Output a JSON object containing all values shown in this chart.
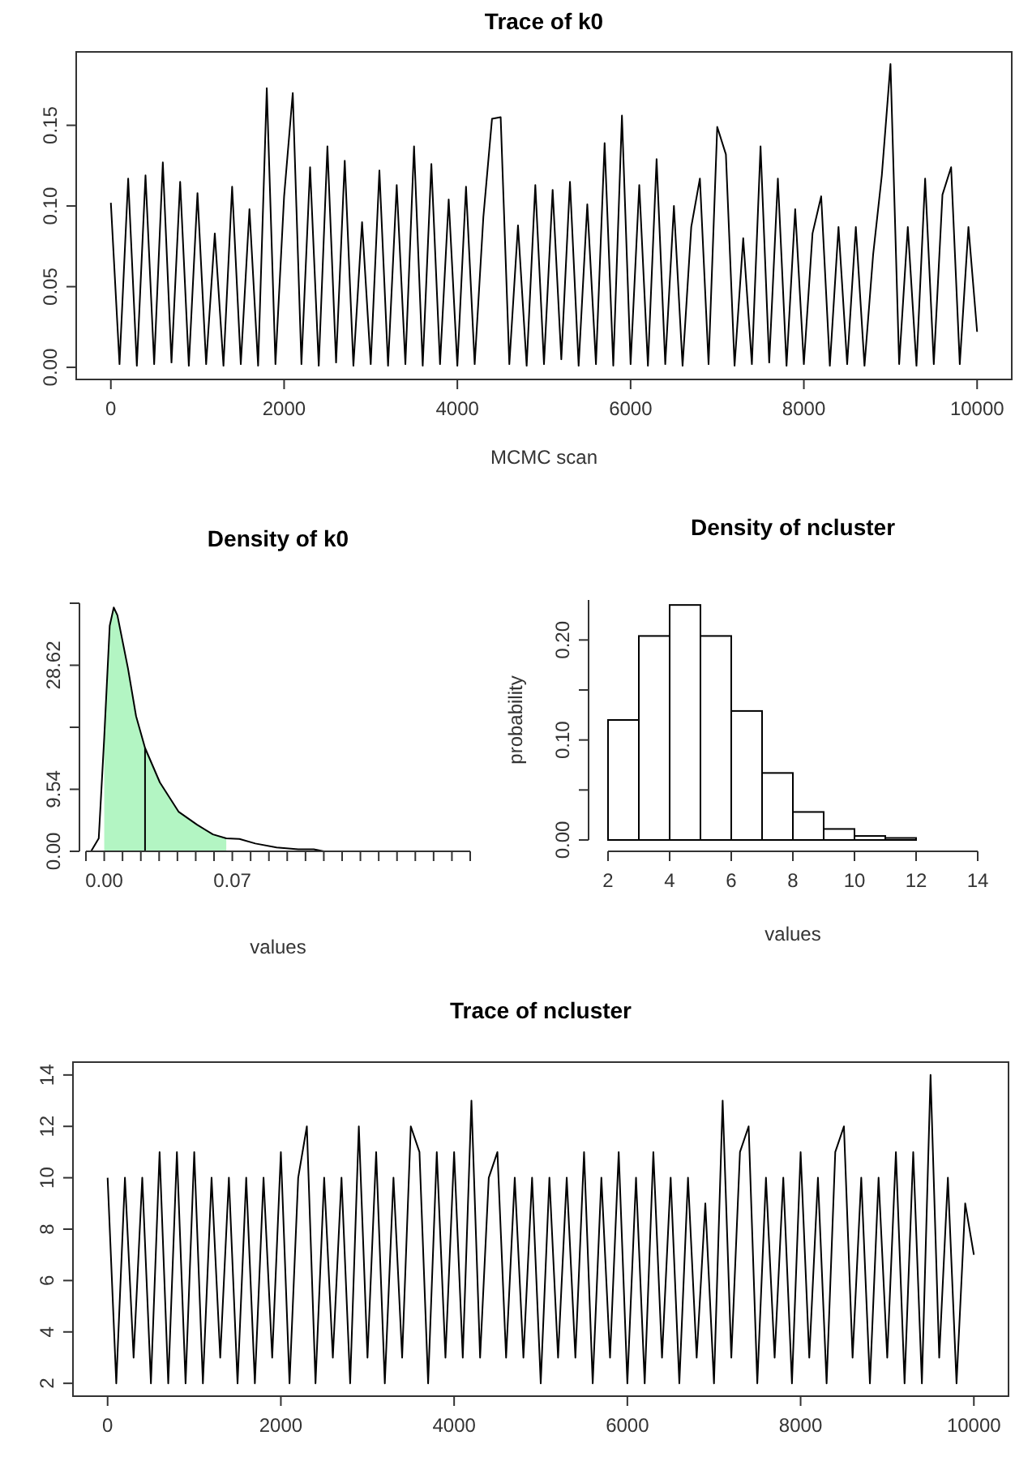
{
  "chart_data": [
    {
      "type": "line",
      "title": "Trace of k0",
      "xlabel": "MCMC scan",
      "xlim": [
        -400,
        10400
      ],
      "ylim": [
        -0.0075,
        0.1955
      ],
      "xticks": [
        0,
        2000,
        4000,
        6000,
        8000,
        10000
      ],
      "yticks": [
        {
          "value": 0,
          "label": "0.00"
        },
        {
          "value": 0.05,
          "label": "0.05"
        },
        {
          "value": 0.1,
          "label": "0.10"
        },
        {
          "value": 0.15,
          "label": "0.15"
        }
      ],
      "series": [
        {
          "color": "#000000",
          "x": [
            0,
            100,
            200,
            300,
            400,
            500,
            600,
            700,
            800,
            900,
            1000,
            1100,
            1200,
            1300,
            1400,
            1500,
            1600,
            1700,
            1800,
            1900,
            2000,
            2100,
            2200,
            2300,
            2400,
            2500,
            2600,
            2700,
            2800,
            2900,
            3000,
            3100,
            3200,
            3300,
            3400,
            3500,
            3600,
            3700,
            3800,
            3900,
            4000,
            4100,
            4200,
            4300,
            4400,
            4500,
            4600,
            4700,
            4800,
            4900,
            5000,
            5100,
            5200,
            5300,
            5400,
            5500,
            5600,
            5700,
            5800,
            5900,
            6000,
            6100,
            6200,
            6300,
            6400,
            6500,
            6600,
            6700,
            6800,
            6900,
            7000,
            7100,
            7200,
            7300,
            7400,
            7500,
            7600,
            7700,
            7800,
            7900,
            8000,
            8100,
            8200,
            8300,
            8400,
            8500,
            8600,
            8700,
            8800,
            8900,
            9000,
            9100,
            9200,
            9300,
            9400,
            9500,
            9600,
            9700,
            9800,
            9900,
            10000
          ],
          "values": [
            0.102,
            0.002,
            0.117,
            0.001,
            0.119,
            0.002,
            0.127,
            0.003,
            0.115,
            0.001,
            0.108,
            0.002,
            0.083,
            0.001,
            0.112,
            0.002,
            0.098,
            0.001,
            0.173,
            0.002,
            0.106,
            0.17,
            0.002,
            0.124,
            0.001,
            0.137,
            0.003,
            0.128,
            0.001,
            0.09,
            0.002,
            0.122,
            0.001,
            0.113,
            0.002,
            0.137,
            0.001,
            0.126,
            0.002,
            0.104,
            0.001,
            0.112,
            0.002,
            0.093,
            0.154,
            0.155,
            0.002,
            0.088,
            0.001,
            0.113,
            0.002,
            0.11,
            0.005,
            0.115,
            0.001,
            0.101,
            0.002,
            0.139,
            0.001,
            0.156,
            0.002,
            0.113,
            0.001,
            0.129,
            0.002,
            0.1,
            0.001,
            0.087,
            0.117,
            0.002,
            0.149,
            0.132,
            0.001,
            0.08,
            0.002,
            0.137,
            0.003,
            0.117,
            0.001,
            0.098,
            0.002,
            0.083,
            0.106,
            0.001,
            0.087,
            0.002,
            0.087,
            0.001,
            0.07,
            0.119,
            0.188,
            0.002,
            0.087,
            0.001,
            0.117,
            0.002,
            0.107,
            0.124,
            0.002,
            0.087,
            0.022
          ]
        }
      ]
    },
    {
      "type": "line",
      "title": "Density of k0",
      "xlabel": "values",
      "xlim": [
        -0.01,
        0.2
      ],
      "ylim": [
        0,
        38.16
      ],
      "xticks": [
        {
          "value": -0.01,
          "label": null
        },
        {
          "value": 0,
          "label": "0.00"
        },
        {
          "value": 0.01,
          "label": null
        },
        {
          "value": 0.02,
          "label": null
        },
        {
          "value": 0.03,
          "label": null
        },
        {
          "value": 0.04,
          "label": null
        },
        {
          "value": 0.05,
          "label": null
        },
        {
          "value": 0.06,
          "label": null
        },
        {
          "value": 0.07,
          "label": "0.07"
        },
        {
          "value": 0.08,
          "label": null
        },
        {
          "value": 0.09,
          "label": null
        },
        {
          "value": 0.1,
          "label": null
        },
        {
          "value": 0.11,
          "label": null
        },
        {
          "value": 0.12,
          "label": null
        },
        {
          "value": 0.13,
          "label": null
        },
        {
          "value": 0.14,
          "label": null
        },
        {
          "value": 0.15,
          "label": null
        },
        {
          "value": 0.16,
          "label": null
        },
        {
          "value": 0.17,
          "label": null
        },
        {
          "value": 0.18,
          "label": null
        },
        {
          "value": 0.19,
          "label": null
        },
        {
          "value": 0.2,
          "label": null
        }
      ],
      "yticks": [
        {
          "value": 0,
          "label": "0.00"
        },
        {
          "value": 9.54,
          "label": "9.54"
        },
        {
          "value": 19.08,
          "label": null
        },
        {
          "value": 28.62,
          "label": "28.62"
        },
        {
          "value": 38.16,
          "label": null
        }
      ],
      "series": [
        {
          "type": "line",
          "color": "#000000",
          "x": [
            -0.0072,
            -0.003,
            0,
            0.003,
            0.0052,
            0.0072,
            0.013,
            0.0174,
            0.0223,
            0.0304,
            0.0406,
            0.0507,
            0.0594,
            0.0667,
            0.0739,
            0.0826,
            0.0942,
            0.106,
            0.1145,
            0.12
          ],
          "values": [
            0,
            2,
            17.5,
            34.7,
            37.5,
            36.3,
            28.1,
            20.8,
            15.9,
            10.6,
            6.1,
            4.1,
            2.6,
            2,
            1.9,
            1.2,
            0.6,
            0.3,
            0.3,
            0
          ]
        },
        {
          "type": "area",
          "color": "#b3f5c3",
          "x": [
            0,
            0.003,
            0.0052,
            0.0072,
            0.013,
            0.0174,
            0.0223,
            0.0304,
            0.0406,
            0.0507,
            0.0594,
            0.0667
          ],
          "values": [
            17.5,
            34.7,
            37.5,
            36.3,
            28.1,
            20.8,
            15.9,
            10.6,
            6.1,
            4.1,
            2.6,
            2
          ]
        }
      ],
      "ref_lines": [
        {
          "axis": "x",
          "value": 0.0223,
          "color": "#000000"
        }
      ]
    },
    {
      "type": "histogram",
      "title": "Density of ncluster",
      "xlabel": "values",
      "ylabel": "probability",
      "xlim": [
        2,
        14
      ],
      "ylim": [
        0,
        0.24
      ],
      "xticks": [
        2,
        4,
        6,
        8,
        10,
        12,
        14
      ],
      "yticks": [
        {
          "value": 0,
          "label": "0.00"
        },
        {
          "value": 0.05,
          "label": null
        },
        {
          "value": 0.1,
          "label": "0.10"
        },
        {
          "value": 0.15,
          "label": null
        },
        {
          "value": 0.2,
          "label": "0.20"
        }
      ],
      "bins": [
        2,
        3,
        4,
        5,
        6,
        7,
        8,
        9,
        10,
        11,
        12,
        13,
        14
      ],
      "values": [
        0.12,
        0.204,
        0.235,
        0.204,
        0.129,
        0.067,
        0.028,
        0.011,
        0.004,
        0.002,
        0,
        0
      ],
      "color": "#ffffff"
    },
    {
      "type": "line",
      "title": "Trace of ncluster",
      "xlim": [
        -400,
        10400
      ],
      "ylim": [
        1.5,
        14.5
      ],
      "xticks": [
        0,
        2000,
        4000,
        6000,
        8000,
        10000
      ],
      "yticks": [
        2,
        4,
        6,
        8,
        10,
        12,
        14
      ],
      "series": [
        {
          "color": "#000000",
          "x": [
            0,
            100,
            200,
            300,
            400,
            500,
            600,
            700,
            800,
            900,
            1000,
            1100,
            1200,
            1300,
            1400,
            1500,
            1600,
            1700,
            1800,
            1900,
            2000,
            2100,
            2200,
            2300,
            2400,
            2500,
            2600,
            2700,
            2800,
            2900,
            3000,
            3100,
            3200,
            3300,
            3400,
            3500,
            3600,
            3700,
            3800,
            3900,
            4000,
            4100,
            4200,
            4300,
            4400,
            4500,
            4600,
            4700,
            4800,
            4900,
            5000,
            5100,
            5200,
            5300,
            5400,
            5500,
            5600,
            5700,
            5800,
            5900,
            6000,
            6100,
            6200,
            6300,
            6400,
            6500,
            6600,
            6700,
            6800,
            6900,
            7000,
            7100,
            7200,
            7300,
            7400,
            7500,
            7600,
            7700,
            7800,
            7900,
            8000,
            8100,
            8200,
            8300,
            8400,
            8500,
            8600,
            8700,
            8800,
            8900,
            9000,
            9100,
            9200,
            9300,
            9400,
            9500,
            9600,
            9700,
            9800,
            9900,
            10000
          ],
          "values": [
            10,
            2,
            10,
            3,
            10,
            2,
            11,
            2,
            11,
            2,
            11,
            2,
            10,
            3,
            10,
            2,
            10,
            2,
            10,
            3,
            11,
            2,
            10,
            12,
            2,
            10,
            3,
            10,
            2,
            12,
            3,
            11,
            2,
            10,
            3,
            12,
            11,
            2,
            11,
            3,
            11,
            3,
            13,
            3,
            10,
            11,
            3,
            10,
            3,
            10,
            2,
            10,
            3,
            10,
            3,
            11,
            2,
            10,
            3,
            11,
            2,
            10,
            2,
            11,
            3,
            10,
            2,
            10,
            3,
            9,
            2,
            13,
            3,
            11,
            12,
            2,
            10,
            3,
            10,
            2,
            11,
            3,
            10,
            2,
            11,
            12,
            3,
            10,
            2,
            10,
            3,
            11,
            2,
            11,
            2,
            14,
            3,
            10,
            2,
            9,
            7
          ]
        }
      ]
    }
  ]
}
